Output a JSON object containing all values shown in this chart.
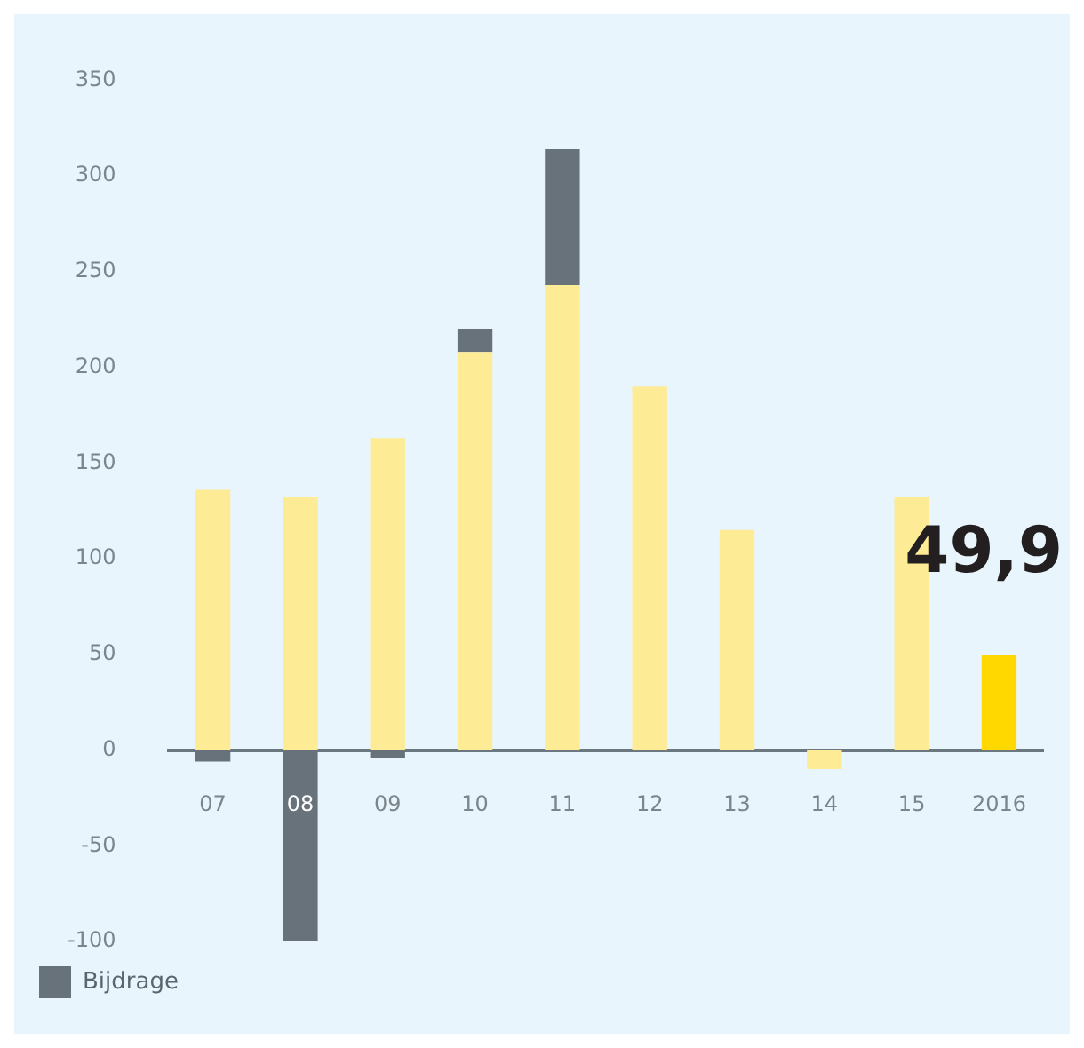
{
  "chart_data": {
    "type": "bar",
    "stacked": true,
    "categories": [
      "07",
      "08",
      "09",
      "10",
      "11",
      "12",
      "13",
      "14",
      "15",
      "2016"
    ],
    "series": [
      {
        "color": "#feeb96",
        "colors": [
          null,
          null,
          null,
          null,
          null,
          null,
          null,
          null,
          null,
          "#ffd800"
        ],
        "values": [
          136,
          132,
          163,
          208,
          243,
          190,
          115,
          -10,
          132,
          49.9
        ],
        "value_labels": [
          null,
          null,
          null,
          null,
          null,
          null,
          null,
          null,
          null,
          "49,9"
        ]
      },
      {
        "name": "Bijdrage",
        "color": "#68727a",
        "values": [
          -6,
          -100,
          -4,
          12,
          71,
          null,
          null,
          null,
          null,
          null
        ]
      }
    ],
    "ylim": [
      -100,
      350
    ],
    "yticks": [
      -100,
      -50,
      0,
      50,
      100,
      150,
      200,
      250,
      300,
      350
    ],
    "grid": false,
    "legend": "bottom left"
  }
}
